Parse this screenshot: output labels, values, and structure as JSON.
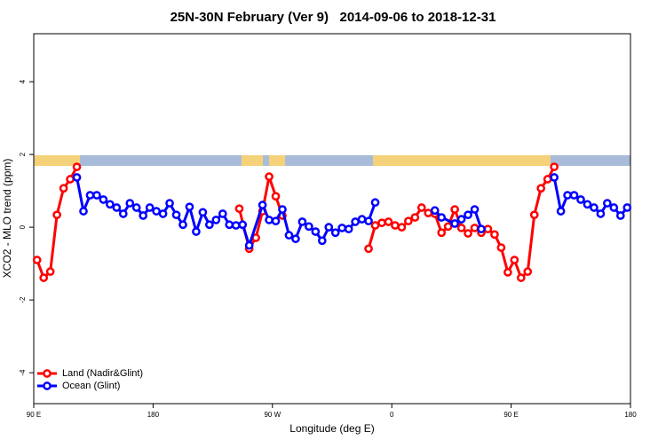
{
  "chart_data": {
    "type": "line",
    "title": "25N-30N February (Ver 9)   2014-09-06 to 2018-12-31",
    "xlabel": "Longitude (deg E)",
    "ylabel": "XCO2 - MLO trend (ppm)",
    "xlim": [
      90,
      540
    ],
    "ylim": [
      -4.85,
      5.32
    ],
    "xticks": [
      {
        "value": 90,
        "label": "90 E"
      },
      180,
      {
        "value": 270,
        "label": "90 W"
      },
      {
        "value": 360,
        "label": "0"
      },
      {
        "value": 450,
        "label": "90 E"
      },
      {
        "value": 540,
        "label": "180"
      }
    ],
    "yticks": [
      -4,
      -2,
      0,
      2,
      4
    ],
    "legend": "bottom-left",
    "series": [
      {
        "name": "Land (Nadir&Glint)",
        "color": "#ff0000",
        "x": [
          92.5,
          97.5,
          102.5,
          107.5,
          112.5,
          117.5,
          122.5,
          null,
          245,
          252.5,
          257.5,
          262.5,
          267.5,
          272.5,
          277.5,
          null,
          342.5,
          347.5,
          352.5,
          357.5,
          362.5,
          367.5,
          372.5,
          377.5,
          382.5,
          387.5,
          392.5,
          397.5,
          402.5,
          407.5,
          412.5,
          417.5,
          422.5,
          427.5,
          432.5,
          437.5,
          442.5,
          447.5,
          452.5,
          457.5,
          462.5,
          467.5,
          472.5,
          477.5,
          482.5
        ],
        "values": [
          -0.9,
          -1.39,
          -1.22,
          0.34,
          1.07,
          1.32,
          1.66,
          null,
          0.51,
          -0.59,
          -0.29,
          0.44,
          1.39,
          0.85,
          0.32,
          null,
          -0.59,
          0.05,
          0.12,
          0.15,
          0.05,
          0,
          0.17,
          0.27,
          0.54,
          0.39,
          0.37,
          -0.15,
          0.02,
          0.49,
          -0.02,
          -0.17,
          -0.02,
          -0.15,
          -0.05,
          -0.2,
          -0.56,
          -1.24,
          -0.9,
          -1.39,
          -1.22,
          0.34,
          1.07,
          1.32,
          1.66
        ]
      },
      {
        "name": "Ocean (Glint)",
        "color": "#0000ff",
        "x": [
          122.5,
          127.5,
          132.5,
          137.5,
          142.5,
          147.5,
          152.5,
          157.5,
          162.5,
          167.5,
          172.5,
          177.5,
          182.5,
          187.5,
          192.5,
          197.5,
          202.5,
          207.5,
          212.5,
          217.5,
          222.5,
          227.5,
          232.5,
          237.5,
          242.5,
          247.5,
          252.5,
          262.5,
          267.5,
          272.5,
          277.5,
          282.5,
          287.5,
          292.5,
          297.5,
          302.5,
          307.5,
          312.5,
          317.5,
          322.5,
          327.5,
          332.5,
          337.5,
          342.5,
          347.5,
          null,
          392.5,
          397.5,
          407.5,
          412.5,
          417.5,
          422.5,
          427.5,
          null,
          482.5,
          487.5,
          492.5,
          497.5,
          502.5,
          507.5,
          512.5,
          517.5,
          522.5,
          527.5,
          532.5,
          537.5
        ],
        "values": [
          1.37,
          0.44,
          0.88,
          0.88,
          0.76,
          0.63,
          0.54,
          0.37,
          0.66,
          0.54,
          0.32,
          0.54,
          0.44,
          0.37,
          0.66,
          0.34,
          0.07,
          0.56,
          -0.12,
          0.41,
          0.07,
          0.2,
          0.37,
          0.07,
          0.05,
          0.07,
          -0.5,
          0.61,
          0.2,
          0.17,
          0.49,
          -0.22,
          -0.32,
          0.15,
          0.02,
          -0.12,
          -0.37,
          0,
          -0.15,
          -0.02,
          -0.05,
          0.15,
          0.22,
          0.17,
          0.68,
          null,
          0.46,
          0.27,
          0.1,
          0.22,
          0.34,
          0.49,
          -0.05,
          null,
          1.37,
          0.44,
          0.88,
          0.88,
          0.76,
          0.63,
          0.54,
          0.37,
          0.66,
          0.54,
          0.32,
          0.54
        ]
      }
    ]
  }
}
